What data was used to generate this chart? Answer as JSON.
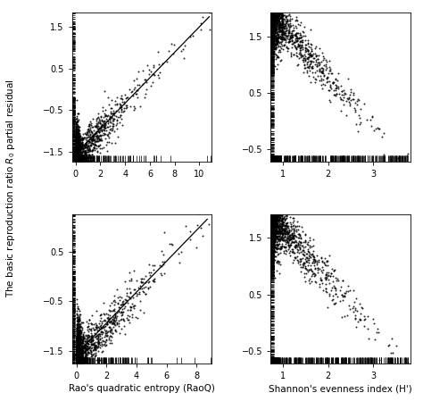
{
  "plots": [
    {
      "xlabel": "",
      "xticks": [
        0,
        2,
        4,
        6,
        8,
        10
      ],
      "xlim": [
        -0.3,
        11.0
      ],
      "ylim": [
        -1.75,
        1.85
      ],
      "yticks": [
        -1.5,
        -0.5,
        0.5,
        1.5
      ],
      "shape": "log_positive",
      "trend_x": [
        -0.3,
        10.8
      ],
      "trend_y": [
        -1.65,
        1.75
      ]
    },
    {
      "xlabel": "",
      "xticks": [
        1.0,
        2.0,
        3.0
      ],
      "xlim": [
        0.72,
        3.82
      ],
      "ylim": [
        -0.72,
        1.92
      ],
      "yticks": [
        -0.5,
        0.5,
        1.5
      ],
      "shape": "linear_negative",
      "trend_x": null,
      "trend_y": null
    },
    {
      "xlabel": "Rao's quadratic entropy (RaoQ)",
      "xticks": [
        0,
        2,
        4,
        6,
        8
      ],
      "xlim": [
        -0.3,
        9.0
      ],
      "ylim": [
        -1.75,
        1.25
      ],
      "yticks": [
        -1.5,
        -0.5,
        0.5
      ],
      "shape": "log_positive",
      "trend_x": [
        -0.3,
        8.7
      ],
      "trend_y": [
        -1.65,
        1.15
      ]
    },
    {
      "xlabel": "Shannon's evenness index (H')",
      "xticks": [
        1.0,
        2.0,
        3.0
      ],
      "xlim": [
        0.72,
        3.82
      ],
      "ylim": [
        -0.72,
        1.92
      ],
      "yticks": [
        -0.5,
        0.5,
        1.5
      ],
      "shape": "linear_negative",
      "trend_x": null,
      "trend_y": null
    }
  ],
  "ylabel": "The basic reproduction ratio $R_0$ partial residual",
  "figure_bg": "white",
  "plot_bg": "white",
  "point_color": "black",
  "point_size": 2,
  "point_alpha": 0.85,
  "line_color": "black",
  "n_points": 2000
}
